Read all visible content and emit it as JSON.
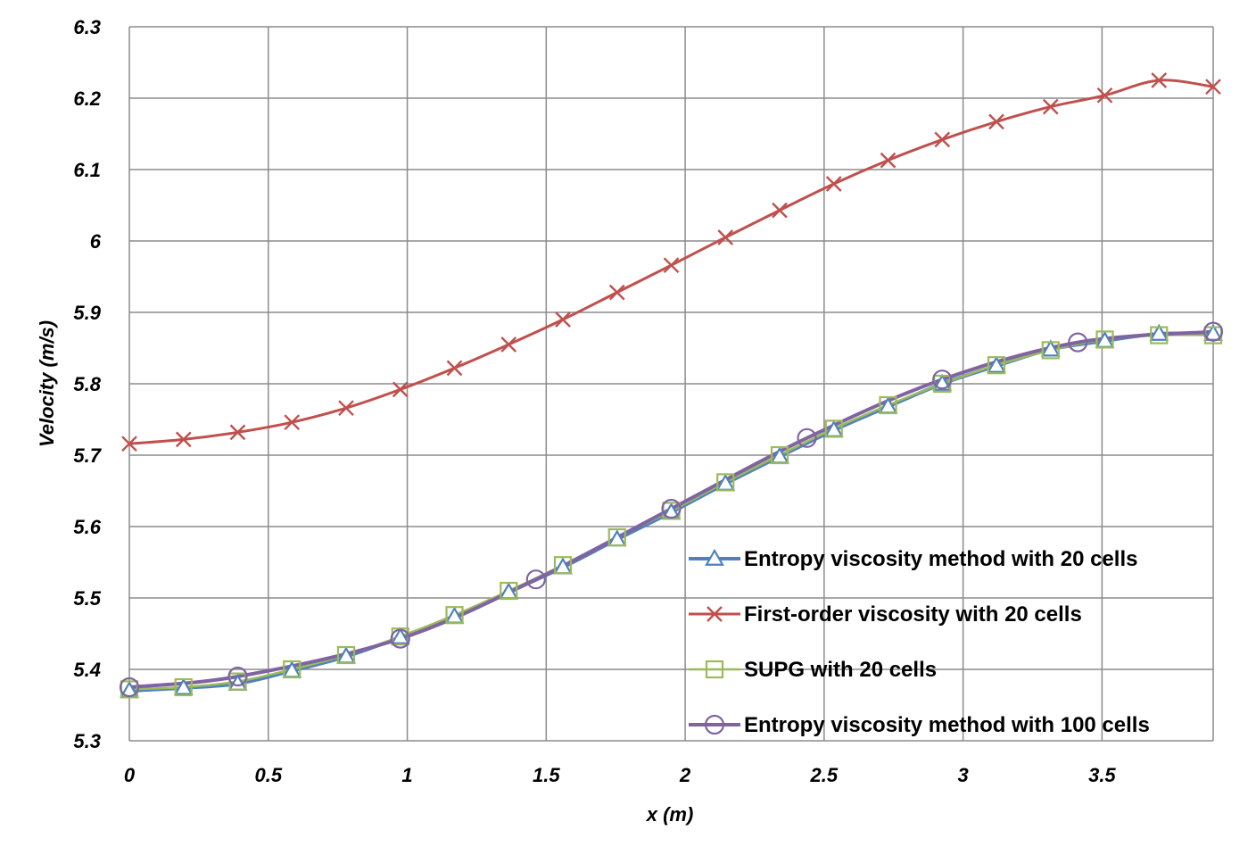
{
  "chart_data": {
    "type": "line",
    "xlabel": "x (m)",
    "ylabel": "Velocity (m/s)",
    "xlim": [
      0,
      3.9
    ],
    "ylim": [
      5.3,
      6.3
    ],
    "xticks": [
      0,
      0.5,
      1,
      1.5,
      2,
      2.5,
      3,
      3.5
    ],
    "xtick_labels": [
      "0",
      "0.5",
      "1",
      "1.5",
      "2",
      "2.5",
      "3",
      "3.5"
    ],
    "yticks": [
      5.3,
      5.4,
      5.5,
      5.6,
      5.7,
      5.8,
      5.9,
      6,
      6.1,
      6.2,
      6.3
    ],
    "ytick_labels": [
      "5.3",
      "5.4",
      "5.5",
      "5.6",
      "5.7",
      "5.8",
      "5.9",
      "6",
      "6.1",
      "6.2",
      "6.3"
    ],
    "grid": true,
    "legend_position": "bottom-right",
    "series": [
      {
        "name": "Entropy viscosity method with 20 cells",
        "color": "#4f81bd",
        "marker": "triangle",
        "x": [
          0,
          0.195,
          0.39,
          0.585,
          0.78,
          0.975,
          1.17,
          1.365,
          1.56,
          1.755,
          1.95,
          2.145,
          2.34,
          2.535,
          2.73,
          2.925,
          3.12,
          3.315,
          3.51,
          3.705,
          3.9
        ],
        "y": [
          5.37,
          5.374,
          5.38,
          5.398,
          5.418,
          5.445,
          5.474,
          5.508,
          5.543,
          5.582,
          5.62,
          5.66,
          5.698,
          5.735,
          5.768,
          5.8,
          5.825,
          5.848,
          5.86,
          5.87,
          5.87
        ]
      },
      {
        "name": "First-order viscosity with 20 cells",
        "color": "#c0504d",
        "marker": "x",
        "x": [
          0,
          0.195,
          0.39,
          0.585,
          0.78,
          0.975,
          1.17,
          1.365,
          1.56,
          1.755,
          1.95,
          2.145,
          2.34,
          2.535,
          2.73,
          2.925,
          3.12,
          3.315,
          3.51,
          3.705,
          3.9
        ],
        "y": [
          5.716,
          5.722,
          5.732,
          5.746,
          5.766,
          5.792,
          5.822,
          5.855,
          5.89,
          5.928,
          5.966,
          6.005,
          6.043,
          6.08,
          6.113,
          6.142,
          6.167,
          6.188,
          6.204,
          6.225,
          6.216
        ]
      },
      {
        "name": "SUPG with 20 cells",
        "color": "#9bbb59",
        "marker": "square",
        "x": [
          0,
          0.195,
          0.39,
          0.585,
          0.78,
          0.975,
          1.17,
          1.365,
          1.56,
          1.755,
          1.95,
          2.145,
          2.34,
          2.535,
          2.73,
          2.925,
          3.12,
          3.315,
          3.51,
          3.705,
          3.9
        ],
        "y": [
          5.372,
          5.375,
          5.383,
          5.4,
          5.42,
          5.446,
          5.476,
          5.51,
          5.546,
          5.585,
          5.622,
          5.662,
          5.7,
          5.737,
          5.77,
          5.8,
          5.826,
          5.847,
          5.862,
          5.868,
          5.868
        ]
      },
      {
        "name": "Entropy viscosity method with 100 cells",
        "color": "#8064a2",
        "marker": "circle",
        "x": [
          0,
          0.39,
          0.975,
          1.463,
          1.95,
          2.438,
          2.925,
          3.413,
          3.9
        ],
        "y": [
          5.375,
          5.39,
          5.443,
          5.526,
          5.625,
          5.724,
          5.806,
          5.858,
          5.873
        ]
      }
    ]
  }
}
